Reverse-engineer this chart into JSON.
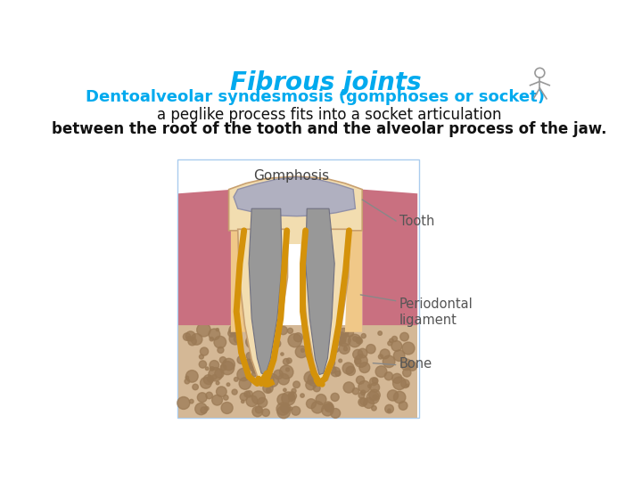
{
  "title": "Fibrous joints",
  "title_color": "#00AAEE",
  "subtitle": "Dentoalveolar syndesmosis (gomphoses or socket)",
  "subtitle_color": "#00AAEE",
  "line1": "a peglike process fits into a socket articulation",
  "line2": "between the root of the tooth and the alveolar process of the jaw.",
  "line1_color": "#111111",
  "line2_color": "#111111",
  "bg_color": "#ffffff",
  "diagram_label": "Gomphosis",
  "tooth_label": "Tooth",
  "perio_label": "Periodontal\nligament",
  "bone_label": "Bone",
  "label_color": "#555555",
  "arrow_color": "#888888",
  "border_color": "#AACCEE",
  "bone_fill": "#D4B896",
  "bone_speckle": "#9B7A55",
  "gum_color": "#C97080",
  "perio_color": "#F0C888",
  "tooth_cream": "#F2DDB0",
  "tooth_outline": "#C8A070",
  "enamel_gray": "#B0B0C0",
  "pulp_gray": "#989898",
  "gold_color": "#D4920A",
  "stick_color": "#999999"
}
